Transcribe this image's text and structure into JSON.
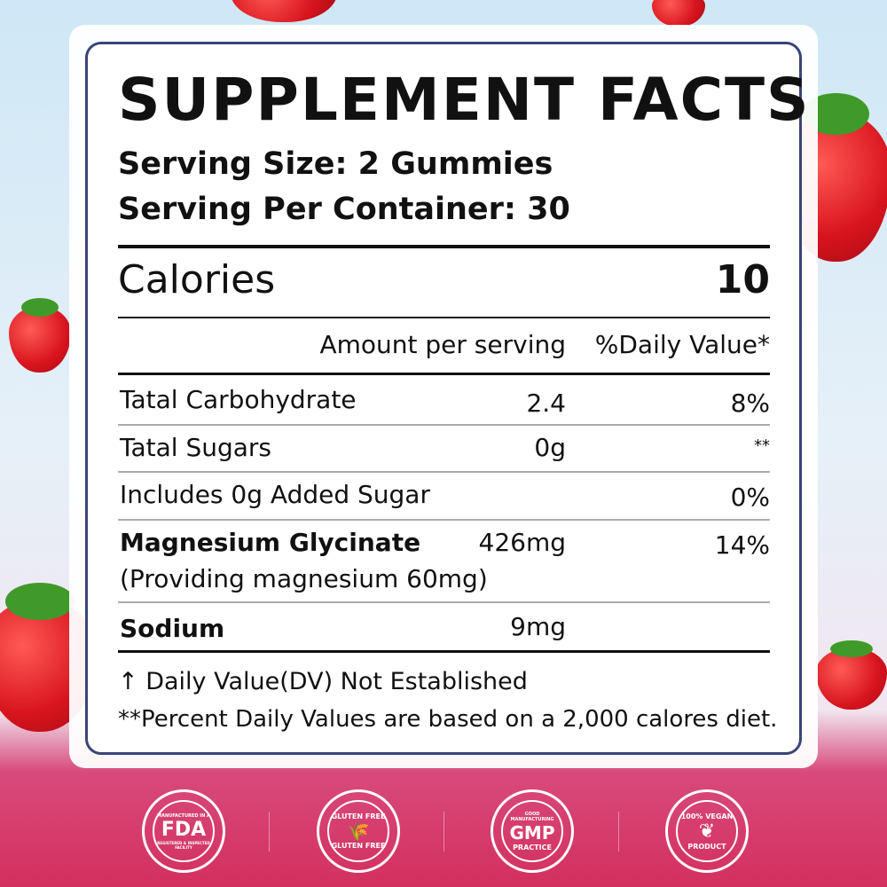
{
  "title": "SUPPLEMENT FACTS",
  "serving_size": "Serving  Size:  2 Gummies",
  "serving_per_container": "Serving  Per Container: 30",
  "calories": {
    "label": "Calories",
    "value": "10"
  },
  "headers": {
    "amount": "Amount per serving",
    "dv": "%Daily  Value*"
  },
  "rows": [
    {
      "name": "Tatal  Carbohydrate",
      "amount": "2.4",
      "dv": "8%"
    },
    {
      "name": "Tatal  Sugars",
      "amount": "0g",
      "dv": "**"
    },
    {
      "name": "Includes  0g  Added  Sugar",
      "amount": "",
      "dv": "0%"
    },
    {
      "name": "Magnesium Glycinate",
      "sub": "(Providing magnesium 60mg)",
      "amount": "426mg",
      "dv": "14%"
    },
    {
      "name": "Sodium",
      "amount": "9mg",
      "dv": ""
    }
  ],
  "footnotes": [
    "↑ Daily Value(DV) Not Established",
    "**Percent Daily Values are based on a 2,000 calores diet."
  ],
  "badges": [
    {
      "icon": "fda-badge-icon",
      "main": "FDA",
      "top": "MANUFACTURED IN A",
      "bottom": "REGISTERED & INSPECTED FACILITY"
    },
    {
      "icon": "gluten-free-icon",
      "main": "🌾",
      "top": "GLUTEN FREE",
      "bottom": "GLUTEN FREE"
    },
    {
      "icon": "gmp-badge-icon",
      "main": "GMP",
      "top": "GOOD MANUFACTURING",
      "bottom": "PRACTICE"
    },
    {
      "icon": "vegan-leaf-icon",
      "main": "❦",
      "top": "100% VEGAN",
      "bottom": "PRODUCT"
    }
  ],
  "colors": {
    "border": "#3a4478",
    "pink": "#d3305f"
  }
}
